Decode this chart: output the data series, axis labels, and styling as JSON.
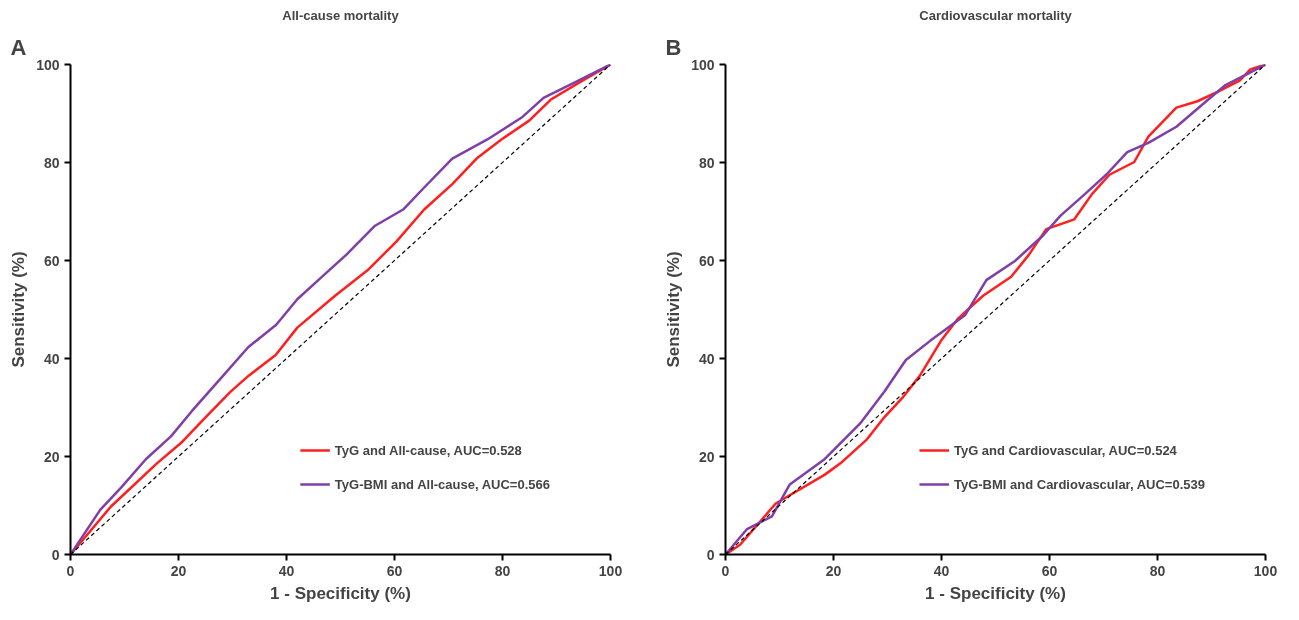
{
  "chart_data": [
    {
      "type": "line",
      "title": "All-cause mortality",
      "xlabel": "1 - Specificity (%)",
      "ylabel": "Sensitivity (%)",
      "annotations": [
        "A"
      ],
      "xlim": [
        0,
        100
      ],
      "ylim": [
        0,
        100
      ],
      "xticks": [
        0,
        20,
        40,
        60,
        80,
        100
      ],
      "yticks": [
        0,
        20,
        40,
        60,
        80,
        100
      ],
      "grid": false,
      "legend": "bottom right",
      "series": [
        {
          "name": "TyG and All-cause, AUC=0.528",
          "color": "#ff1f1f",
          "x": [
            0,
            7.5,
            16,
            20.5,
            25,
            29.6,
            33,
            38,
            42,
            49,
            55,
            60.3,
            65.5,
            70.7,
            75.2,
            79.8,
            85,
            88.9,
            94.8,
            100
          ],
          "values": [
            0,
            9.8,
            18.6,
            22.8,
            28,
            33.2,
            36.5,
            40.7,
            46.3,
            52.8,
            58,
            63.8,
            70.4,
            75.6,
            80.8,
            84.7,
            88.6,
            92.8,
            96.7,
            100
          ]
        },
        {
          "name": "TyG-BMI and All-cause, AUC=0.566",
          "color": "#7f3fa8",
          "x": [
            0,
            5.5,
            9.4,
            14,
            18.6,
            22.5,
            27.7,
            32.9,
            38.1,
            42,
            46.6,
            51.1,
            56.4,
            61.6,
            65.5,
            70.7,
            77.2,
            83.7,
            87.6,
            93.5,
            100
          ],
          "values": [
            0,
            9.1,
            13.7,
            19.5,
            24.1,
            29.3,
            35.8,
            42.3,
            46.9,
            52.1,
            56.7,
            61.2,
            67.1,
            70.4,
            74.9,
            80.8,
            84.7,
            89.3,
            93.2,
            96.4,
            100
          ]
        },
        {
          "color": "#000000",
          "line_style": "dashed",
          "x": [
            0,
            100
          ],
          "values": [
            0,
            100
          ]
        }
      ]
    },
    {
      "type": "line",
      "title": "Cardiovascular mortality",
      "xlabel": "1 - Specificity (%)",
      "ylabel": "Sensitivity (%)",
      "annotations": [
        "B"
      ],
      "xlim": [
        0,
        100
      ],
      "ylim": [
        0,
        100
      ],
      "xticks": [
        0,
        20,
        40,
        60,
        80,
        100
      ],
      "yticks": [
        0,
        20,
        40,
        60,
        80,
        100
      ],
      "grid": false,
      "legend": "bottom right",
      "series": [
        {
          "name": "TyG and Cardiovascular, AUC=0.524",
          "color": "#ff1f1f",
          "x": [
            0,
            2.7,
            9.3,
            18.4,
            21.6,
            26.2,
            29.4,
            32.7,
            36,
            39.9,
            43.1,
            47.7,
            52.9,
            56.2,
            59.4,
            64.6,
            67.9,
            71.1,
            75.7,
            78.3,
            83.5,
            87.4,
            91.3,
            95.2,
            97.2,
            100
          ],
          "values": [
            0,
            2,
            10.4,
            16.3,
            18.9,
            23.5,
            28,
            31.9,
            36.5,
            43.6,
            48.2,
            52.8,
            56.7,
            61.2,
            66.4,
            68.4,
            73.6,
            77.5,
            80.1,
            85.3,
            91.2,
            92.5,
            94.5,
            96.7,
            99,
            100
          ]
        },
        {
          "name": "TyG-BMI and Cardiovascular, AUC=0.539",
          "color": "#7f3fa8",
          "x": [
            0,
            4,
            8.6,
            11.9,
            18.4,
            24.9,
            29.4,
            33.4,
            37.9,
            44.4,
            48.3,
            53.6,
            58.8,
            62,
            66.6,
            70.5,
            74.4,
            78.3,
            83.5,
            88.7,
            92.6,
            96.5,
            100
          ],
          "values": [
            0,
            5.2,
            7.8,
            14.3,
            19.5,
            26.7,
            33.2,
            39.7,
            43.6,
            48.9,
            56,
            59.9,
            65.1,
            69.1,
            73.6,
            77.5,
            82.1,
            84,
            87.3,
            92.2,
            95.8,
            98,
            100
          ]
        },
        {
          "color": "#000000",
          "line_style": "dashed",
          "x": [
            0,
            100
          ],
          "values": [
            0,
            100
          ]
        }
      ]
    }
  ]
}
